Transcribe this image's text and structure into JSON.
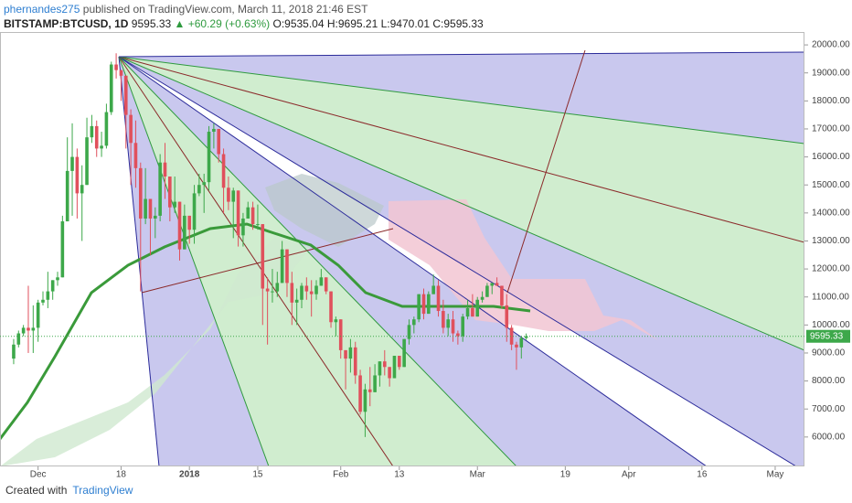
{
  "header": {
    "author": "phernandes275",
    "published": "published on TradingView.com, March 11, 2018 21:46 EST",
    "symbol": "BITSTAMP:BTCUSD, 1D",
    "last": "9595.33",
    "change": "▲ +60.29 (+0.63%)",
    "open": "O:9535.04",
    "high": "H:9695.21",
    "low": "L:9470.01",
    "close": "C:9595.33"
  },
  "footer": {
    "created": "Created with",
    "brand": "TradingView"
  },
  "chart_data": {
    "type": "candlestick",
    "up_color": "#3da84a",
    "down_color": "#e0505c",
    "x": [
      -36,
      -35,
      -34,
      -33,
      -32,
      -31,
      -30,
      -29,
      -28,
      -27,
      -26,
      -25,
      -24,
      -23,
      -22,
      -21,
      -20,
      -19,
      -18,
      -17,
      -16,
      -15,
      -14,
      -13,
      -12,
      -11,
      -10,
      -9,
      -8,
      -7,
      -6,
      -5,
      -4,
      -3,
      -2,
      -1,
      0,
      1,
      2,
      3,
      4,
      5,
      6,
      7,
      8,
      9,
      10,
      11,
      12,
      13,
      14,
      15,
      16,
      17,
      18,
      19,
      20,
      21,
      22,
      23,
      24,
      25,
      26,
      27,
      28,
      29,
      30,
      31,
      32,
      33,
      34,
      35,
      36,
      37,
      38,
      39,
      40,
      41,
      42,
      43,
      44,
      45,
      46,
      47,
      48,
      49,
      50,
      51,
      52,
      53,
      54,
      55,
      56,
      57,
      58,
      59,
      60,
      61,
      62,
      63,
      64,
      65,
      66,
      67,
      68,
      69
    ],
    "open": [
      8800,
      9300,
      9700,
      9900,
      9800,
      9900,
      10800,
      10900,
      11200,
      11600,
      11700,
      13700,
      15500,
      16000,
      14700,
      15000,
      16700,
      17100,
      16300,
      16400,
      17600,
      19300,
      19100,
      18900,
      17500,
      16500,
      15600,
      13800,
      14500,
      13800,
      13900,
      15800,
      15300,
      14200,
      14400,
      12700,
      13900,
      13400,
      14700,
      15000,
      15100,
      16900,
      17000,
      16100,
      14900,
      14400,
      14800,
      13200,
      13800,
      14200,
      13600,
      13600,
      11300,
      11200,
      11200,
      11500,
      12700,
      11500,
      10800,
      10900,
      11400,
      11200,
      11100,
      11400,
      11700,
      11200,
      10100,
      10200,
      9100,
      8800,
      9200,
      8200,
      6900,
      7700,
      7600,
      8200,
      8700,
      8500,
      8100,
      8900,
      8500,
      9500,
      10000,
      10200,
      11100,
      10400,
      11100,
      11400,
      10500,
      9900,
      10200,
      9700,
      9600,
      10300,
      10600,
      10300,
      10900,
      11000,
      11400,
      11500,
      11400,
      10700,
      9900,
      9300,
      9200,
      9535.04
    ],
    "high": [
      9500,
      9800,
      10000,
      11400,
      10700,
      10900,
      11200,
      11900,
      11600,
      11900,
      13900,
      16700,
      17200,
      16300,
      15700,
      17400,
      17500,
      17300,
      16900,
      17900,
      19400,
      19700,
      19100,
      18900,
      17700,
      17300,
      15800,
      15600,
      14500,
      14200,
      16100,
      16500,
      15300,
      15300,
      14400,
      14300,
      13900,
      15000,
      15400,
      15400,
      17100,
      17200,
      17000,
      16300,
      15300,
      14900,
      14800,
      14000,
      14400,
      14400,
      14300,
      13600,
      11700,
      12000,
      11900,
      13000,
      12700,
      11900,
      11300,
      11500,
      11700,
      11600,
      11600,
      12000,
      11700,
      11200,
      10300,
      10200,
      9100,
      9500,
      9400,
      8400,
      7900,
      8500,
      8600,
      8700,
      9100,
      8500,
      8900,
      8900,
      9500,
      10200,
      10300,
      11100,
      11300,
      11200,
      11800,
      11600,
      10900,
      10400,
      10500,
      9800,
      10400,
      10900,
      11100,
      11000,
      11200,
      11500,
      11500,
      11700,
      11400,
      11100,
      10000,
      9400,
      9600,
      9695.21
    ],
    "low": [
      8600,
      9200,
      9600,
      9000,
      9000,
      9400,
      10700,
      10600,
      10900,
      11400,
      11700,
      13700,
      13900,
      13800,
      13000,
      15000,
      16500,
      16000,
      16000,
      16300,
      17500,
      18800,
      18000,
      16300,
      15000,
      14900,
      11200,
      13600,
      12500,
      13100,
      13700,
      14500,
      13700,
      14000,
      12300,
      12700,
      12900,
      12900,
      14600,
      14000,
      14800,
      16300,
      15800,
      14000,
      14100,
      13100,
      12800,
      12800,
      13800,
      13400,
      13400,
      10000,
      9300,
      10800,
      11000,
      11500,
      11000,
      10000,
      10000,
      10600,
      10900,
      10300,
      10900,
      11400,
      11100,
      9900,
      9600,
      8800,
      7700,
      8300,
      7900,
      6800,
      6000,
      7100,
      7600,
      7800,
      8200,
      7800,
      8100,
      8400,
      8500,
      9300,
      9700,
      10100,
      10200,
      10400,
      11100,
      10300,
      9700,
      9600,
      9400,
      9300,
      9400,
      10200,
      10300,
      10300,
      10800,
      11000,
      11100,
      11400,
      10600,
      9400,
      9100,
      8400,
      8800,
      9470.01
    ],
    "close": [
      9300,
      9700,
      9900,
      9800,
      9900,
      10800,
      10900,
      11200,
      11600,
      11700,
      13700,
      15500,
      16000,
      14700,
      15000,
      16700,
      17100,
      16300,
      16400,
      17600,
      19300,
      19100,
      18900,
      17500,
      16500,
      15600,
      13800,
      14500,
      13800,
      13900,
      15800,
      15300,
      14200,
      14400,
      12700,
      13900,
      13400,
      14700,
      15000,
      15100,
      16900,
      17000,
      16100,
      14900,
      14400,
      14800,
      13200,
      13800,
      14200,
      13600,
      13600,
      11300,
      11200,
      11200,
      11500,
      12700,
      11500,
      10800,
      10900,
      11400,
      11200,
      11100,
      11400,
      11700,
      11200,
      10100,
      10200,
      9100,
      8800,
      9200,
      8200,
      6900,
      7700,
      7600,
      8200,
      8700,
      8500,
      8100,
      8900,
      8500,
      9500,
      10000,
      10200,
      11100,
      10400,
      11100,
      11400,
      10500,
      9900,
      10200,
      9700,
      9600,
      10300,
      10600,
      10300,
      10900,
      11000,
      11400,
      11500,
      11400,
      10700,
      9900,
      9300,
      9200,
      9535.04,
      9595.33
    ],
    "last_label": "9595.33",
    "xlim": [
      -38.8,
      126
    ],
    "ylim": [
      4950,
      20460
    ],
    "xticks": [
      {
        "value": -31,
        "label": "Dec"
      },
      {
        "value": -14,
        "label": "18"
      },
      {
        "value": 0,
        "label": "2018"
      },
      {
        "value": 14,
        "label": "15"
      },
      {
        "value": 31,
        "label": "Feb"
      },
      {
        "value": 43,
        "label": "13"
      },
      {
        "value": 59,
        "label": "Mar"
      },
      {
        "value": 77,
        "label": "19"
      },
      {
        "value": 90,
        "label": "Apr"
      },
      {
        "value": 105,
        "label": "16"
      },
      {
        "value": 120,
        "label": "May"
      }
    ],
    "yticks": [
      {
        "value": 6000,
        "label": "6000.00"
      },
      {
        "value": 7000,
        "label": "7000.00"
      },
      {
        "value": 8000,
        "label": "8000.00"
      },
      {
        "value": 9000,
        "label": "9000.00"
      },
      {
        "value": 10000,
        "label": "10000.00"
      },
      {
        "value": 11000,
        "label": "11000.00"
      },
      {
        "value": 12000,
        "label": "12000.00"
      },
      {
        "value": 13000,
        "label": "13000.00"
      },
      {
        "value": 14000,
        "label": "14000.00"
      },
      {
        "value": 15000,
        "label": "15000.00"
      },
      {
        "value": 16000,
        "label": "16000.00"
      },
      {
        "value": 17000,
        "label": "17000.00"
      },
      {
        "value": 18000,
        "label": "18000.00"
      },
      {
        "value": 19000,
        "label": "19000.00"
      },
      {
        "value": 20000,
        "label": "20000.00"
      }
    ]
  }
}
